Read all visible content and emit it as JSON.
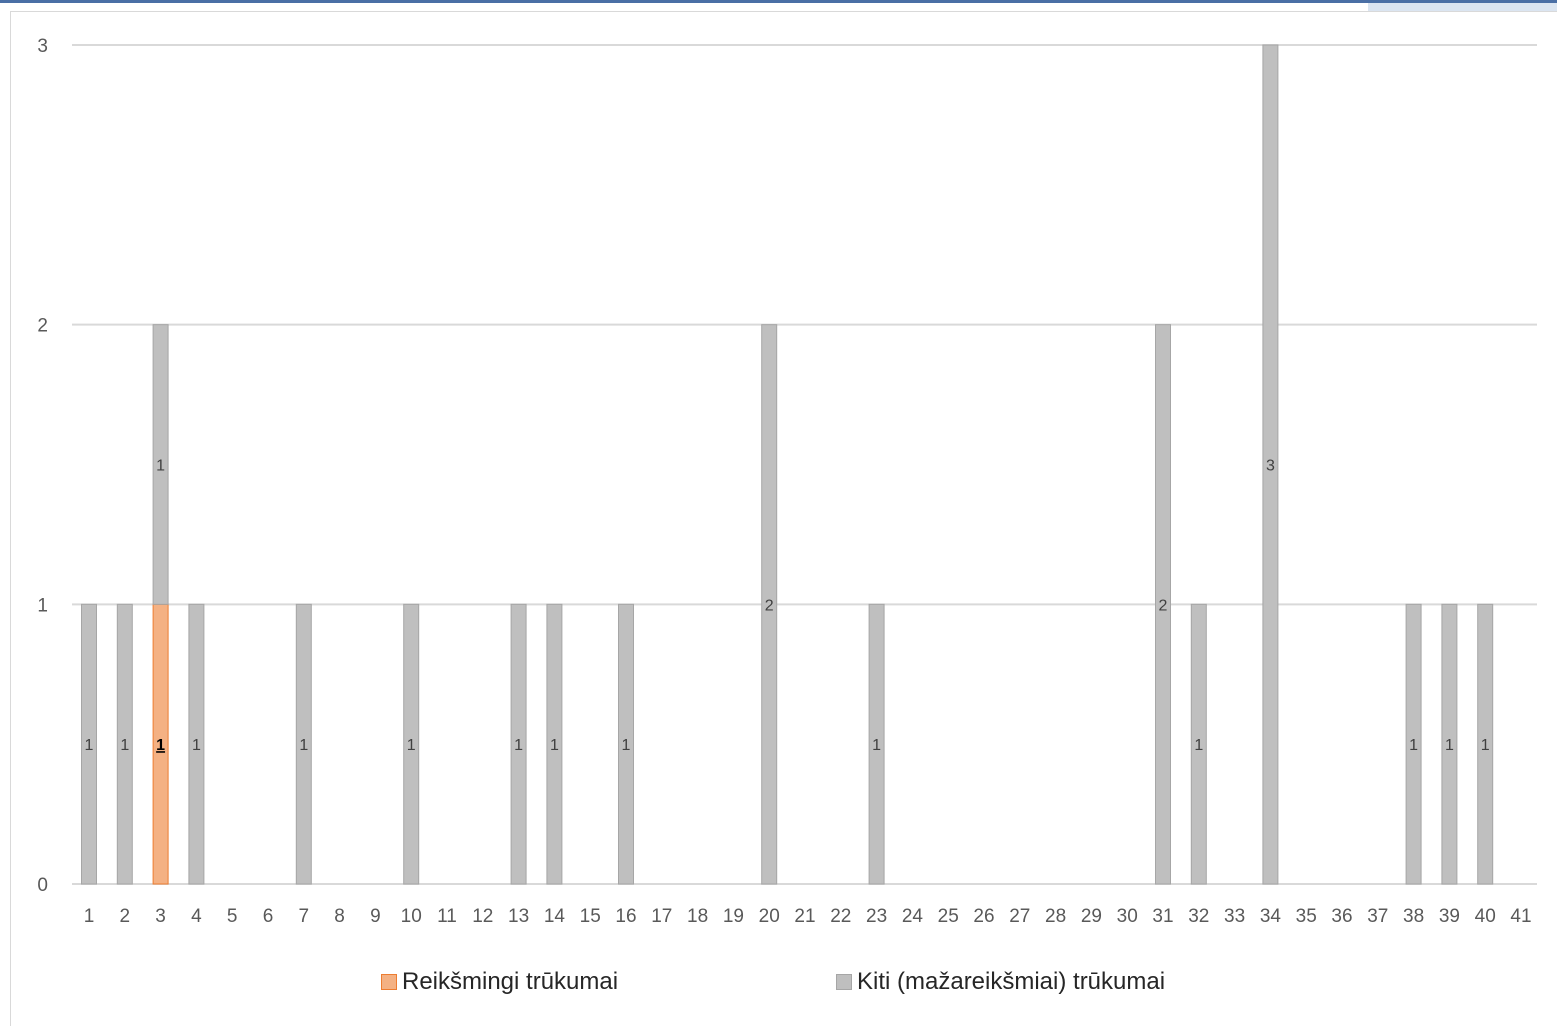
{
  "colors": {
    "significant_fill": "#f4b183",
    "significant_stroke": "#ed7d31",
    "other_fill": "#bfbfbf",
    "other_stroke": "#a6a6a6",
    "grid": "#d9d9d9"
  },
  "legend": {
    "significant": "Reikšmingi trūkumai",
    "other": "Kiti (mažareikšmiai) trūkumai"
  },
  "chart_data": {
    "type": "bar",
    "stacked": true,
    "categories": [
      "1",
      "2",
      "3",
      "4",
      "5",
      "6",
      "7",
      "8",
      "9",
      "10",
      "11",
      "12",
      "13",
      "14",
      "15",
      "16",
      "17",
      "18",
      "19",
      "20",
      "21",
      "22",
      "23",
      "24",
      "25",
      "26",
      "27",
      "28",
      "29",
      "30",
      "31",
      "32",
      "33",
      "34",
      "35",
      "36",
      "37",
      "38",
      "39",
      "40",
      "41"
    ],
    "series": [
      {
        "name": "Reikšmingi trūkumai",
        "values": [
          0,
          0,
          1,
          0,
          0,
          0,
          0,
          0,
          0,
          0,
          0,
          0,
          0,
          0,
          0,
          0,
          0,
          0,
          0,
          0,
          0,
          0,
          0,
          0,
          0,
          0,
          0,
          0,
          0,
          0,
          0,
          0,
          0,
          0,
          0,
          0,
          0,
          0,
          0,
          0,
          0
        ]
      },
      {
        "name": "Kiti (mažareikšmiai) trūkumai",
        "values": [
          1,
          1,
          1,
          1,
          0,
          0,
          1,
          0,
          0,
          1,
          0,
          0,
          1,
          1,
          0,
          1,
          0,
          0,
          0,
          2,
          0,
          0,
          1,
          0,
          0,
          0,
          0,
          0,
          0,
          0,
          2,
          1,
          0,
          3,
          0,
          0,
          0,
          1,
          1,
          1,
          0
        ]
      }
    ],
    "yticks": [
      "0",
      "1",
      "2",
      "3"
    ],
    "ylim": [
      0,
      3
    ],
    "grid": true,
    "legend_position": "bottom",
    "data_labels": true
  }
}
